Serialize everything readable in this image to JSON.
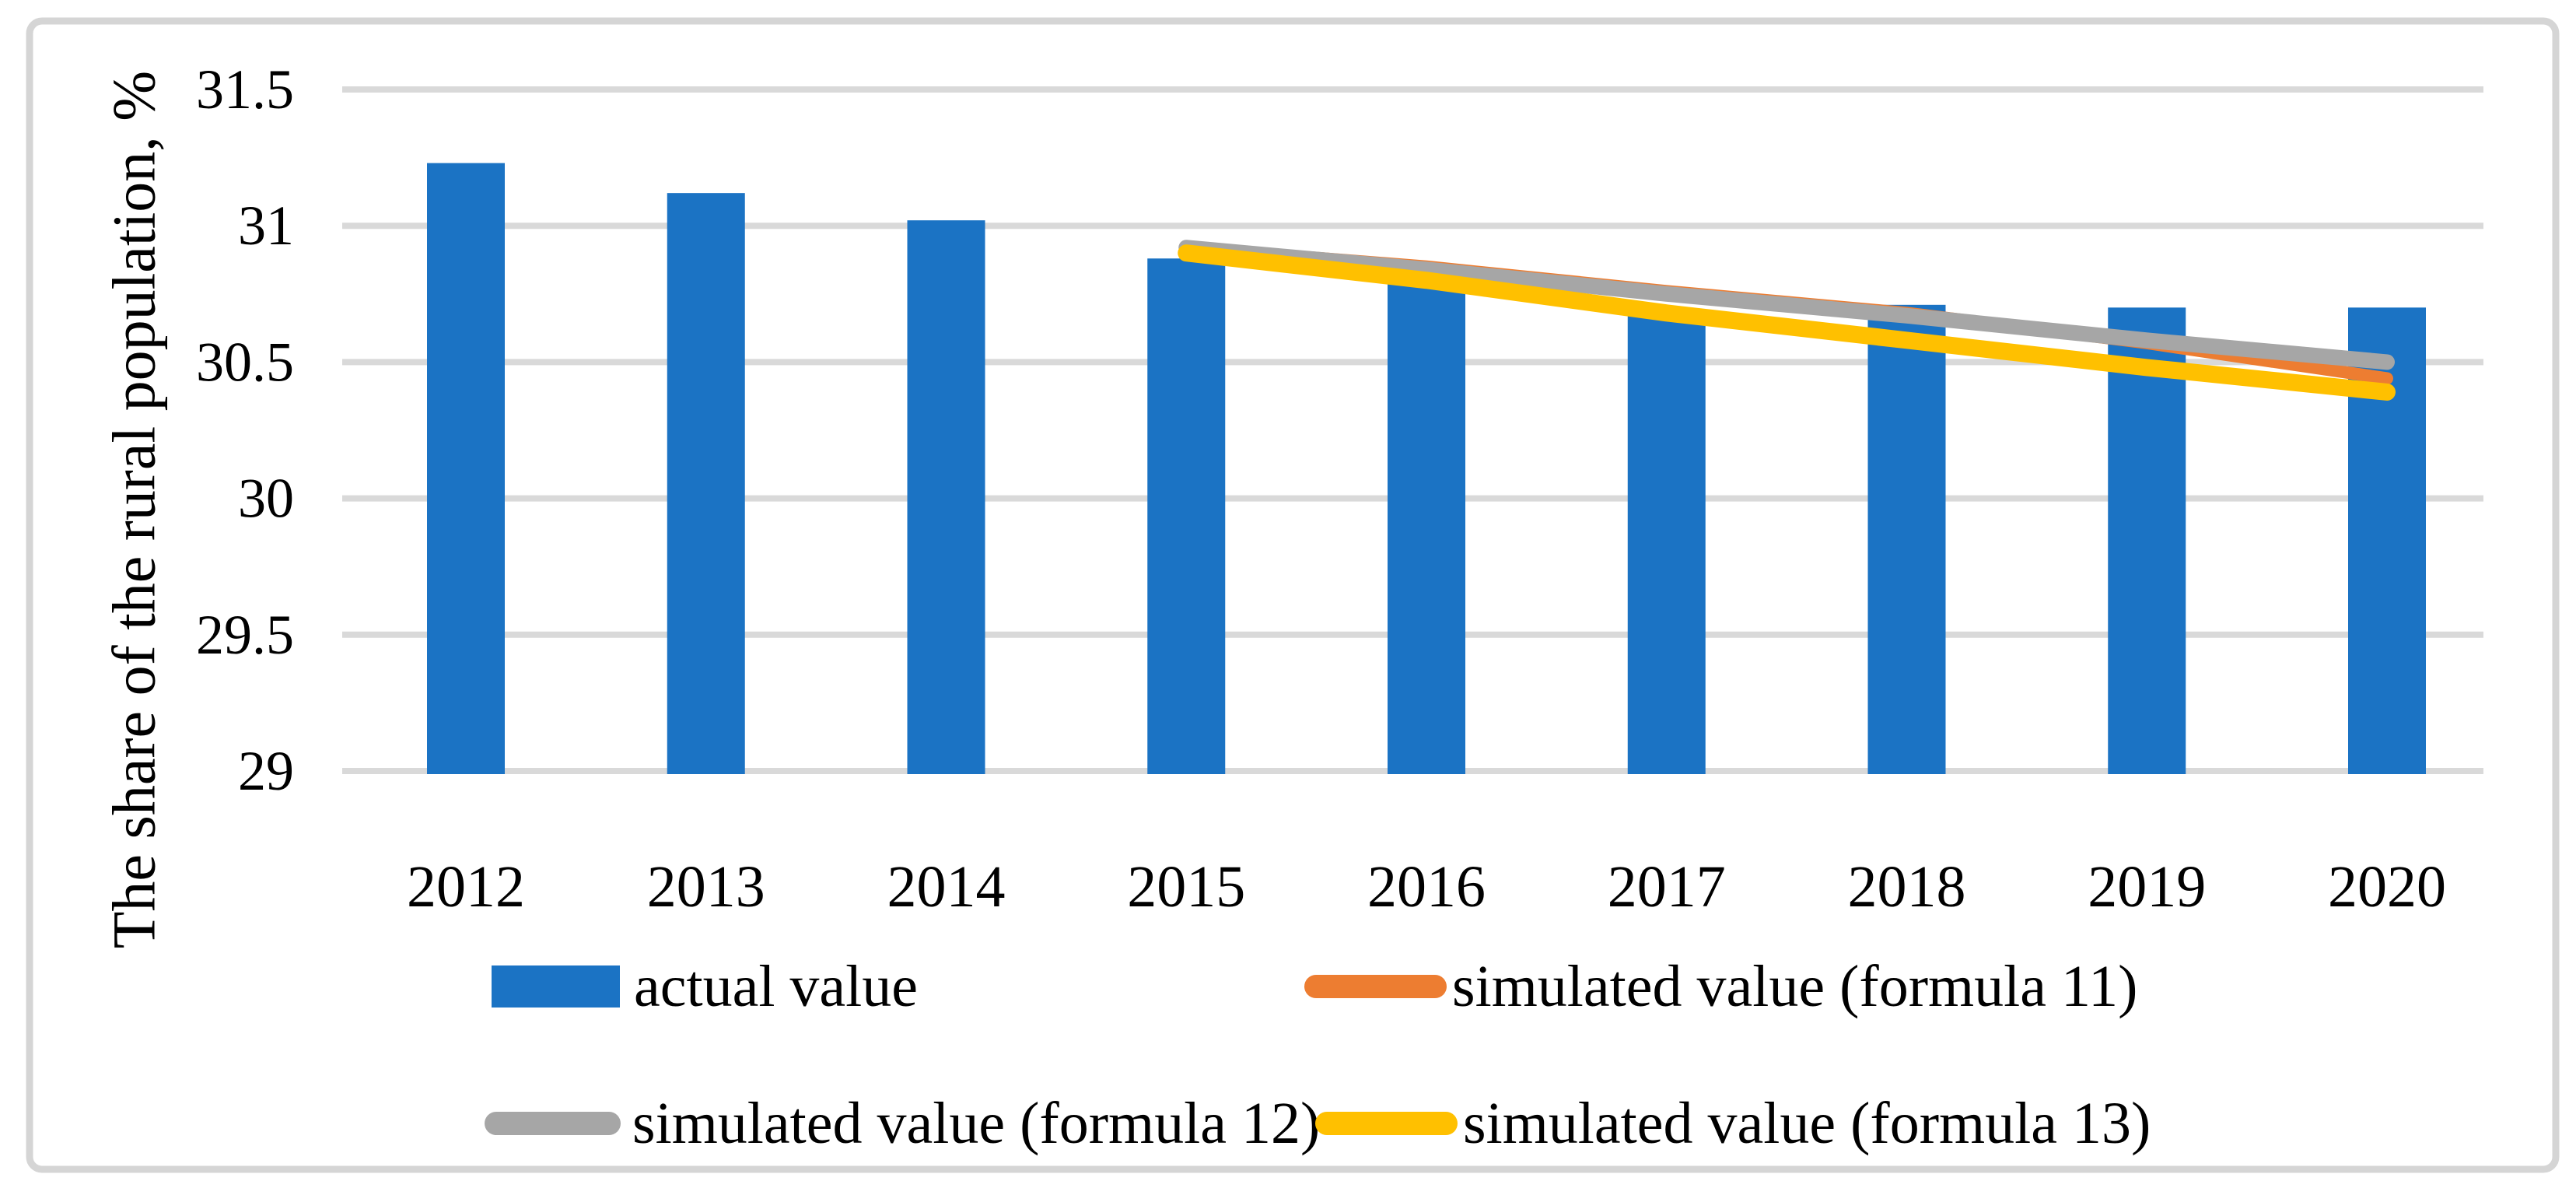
{
  "figure": {
    "background": "#ffffff",
    "border_color": "#d5d5d5",
    "gridline_color": "#d9d9d9",
    "text_color": "#000000"
  },
  "y_axis": {
    "title": "The share of the rural population, %",
    "tick_labels": [
      "31.5",
      "31",
      "30.5",
      "30",
      "29.5",
      "29"
    ]
  },
  "x_axis": {
    "labels": [
      "2012",
      "2013",
      "2014",
      "2015",
      "2016",
      "2017",
      "2018",
      "2019",
      "2020"
    ]
  },
  "legend": {
    "position": "bottom",
    "rows": 2
  },
  "chart_data": {
    "type": "bar",
    "subtype": "bar-with-line-overlays",
    "title": "",
    "xlabel": "",
    "ylabel": "The share of the rural population, %",
    "ylim": [
      29,
      31.5
    ],
    "yticks": [
      31.5,
      31,
      30.5,
      30,
      29.5,
      29
    ],
    "grid": true,
    "legend_position": "bottom",
    "categories": [
      "2012",
      "2013",
      "2014",
      "2015",
      "2016",
      "2017",
      "2018",
      "2019",
      "2020"
    ],
    "series": [
      {
        "name": "actual value",
        "type": "bar",
        "color": "#1b73c4",
        "x": [
          "2012",
          "2013",
          "2014",
          "2015",
          "2016",
          "2017",
          "2018",
          "2019",
          "2020"
        ],
        "values": [
          31.23,
          31.12,
          31.02,
          30.88,
          30.79,
          30.69,
          30.71,
          30.7,
          30.7
        ]
      },
      {
        "name": "simulated value (formula 11)",
        "type": "line",
        "color": "#ed7d31",
        "x": [
          "2015",
          "2016",
          "2017",
          "2018",
          "2019",
          "2020"
        ],
        "values": [
          30.92,
          30.85,
          30.76,
          30.68,
          30.57,
          30.44
        ]
      },
      {
        "name": "simulated value (formula 12)",
        "type": "line",
        "color": "#a6a6a6",
        "x": [
          "2015",
          "2016",
          "2017",
          "2018",
          "2019",
          "2020"
        ],
        "values": [
          30.92,
          30.84,
          30.75,
          30.67,
          30.58,
          30.5
        ]
      },
      {
        "name": "simulated value (formula 13)",
        "type": "line",
        "color": "#ffc000",
        "x": [
          "2015",
          "2016",
          "2017",
          "2018",
          "2019",
          "2020"
        ],
        "values": [
          30.9,
          30.8,
          30.68,
          30.58,
          30.48,
          30.39
        ]
      }
    ]
  }
}
